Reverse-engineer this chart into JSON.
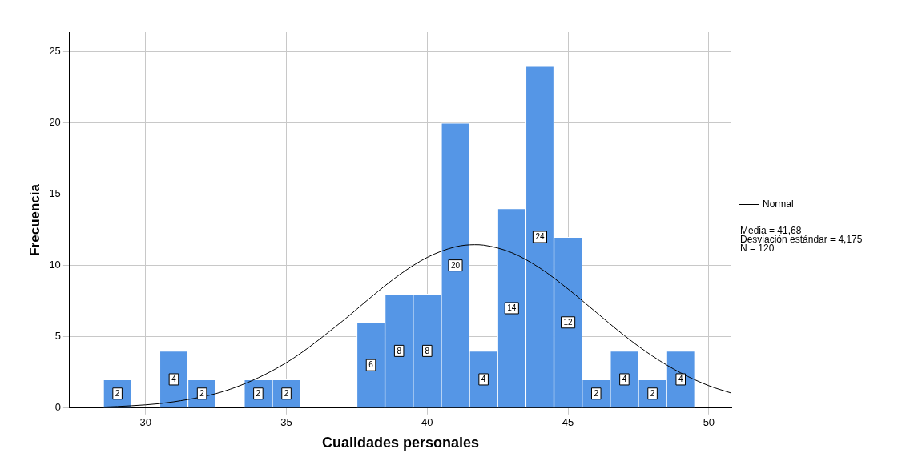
{
  "chart_data": {
    "type": "histogram",
    "xlabel": "Cualidades personales",
    "ylabel": "Frecuencia",
    "bins": [
      28.5,
      29.5,
      30.5,
      31.5,
      32.5,
      33.5,
      34.5,
      35.5,
      36.5,
      37.5,
      38.5,
      39.5,
      40.5,
      41.5,
      42.5,
      43.5,
      44.5,
      45.5,
      46.5,
      47.5,
      48.5,
      49.5
    ],
    "values": [
      2,
      0,
      4,
      2,
      0,
      2,
      2,
      0,
      0,
      6,
      8,
      8,
      20,
      4,
      14,
      24,
      12,
      2,
      4,
      2,
      4
    ],
    "color": "#5596e6",
    "series": [
      {
        "type": "line",
        "name": "Normal",
        "color": "#000000",
        "x": [
          27.3,
          29,
          31,
          33,
          35,
          37,
          38,
          39,
          40,
          41,
          41.68,
          42,
          43,
          44,
          45,
          46,
          47,
          48,
          49,
          50,
          50.8
        ],
        "values": [
          0.03,
          0.11,
          0.44,
          1.32,
          3.19,
          6.12,
          7.78,
          9.34,
          10.58,
          11.32,
          11.47,
          11.44,
          10.91,
          9.83,
          8.36,
          6.72,
          5.09,
          3.65,
          2.47,
          1.57,
          1.05
        ]
      }
    ],
    "xlim": [
      27.3,
      50.8
    ],
    "xticks": [
      30,
      35,
      40,
      45,
      50
    ],
    "ylim": [
      0,
      26.4
    ],
    "yticks": [
      0,
      5,
      10,
      15,
      20,
      25
    ],
    "value_labels": [
      "2",
      null,
      "4",
      "2",
      null,
      "2",
      "2",
      null,
      null,
      "6",
      "8",
      "8",
      "20",
      "4",
      "14",
      "24",
      "12",
      "2",
      "4",
      "2",
      "4"
    ],
    "grid": true,
    "legend": "right",
    "annotations": [
      "Media = 41,68",
      "Desviación estándar = 4,175",
      "N = 120"
    ]
  }
}
